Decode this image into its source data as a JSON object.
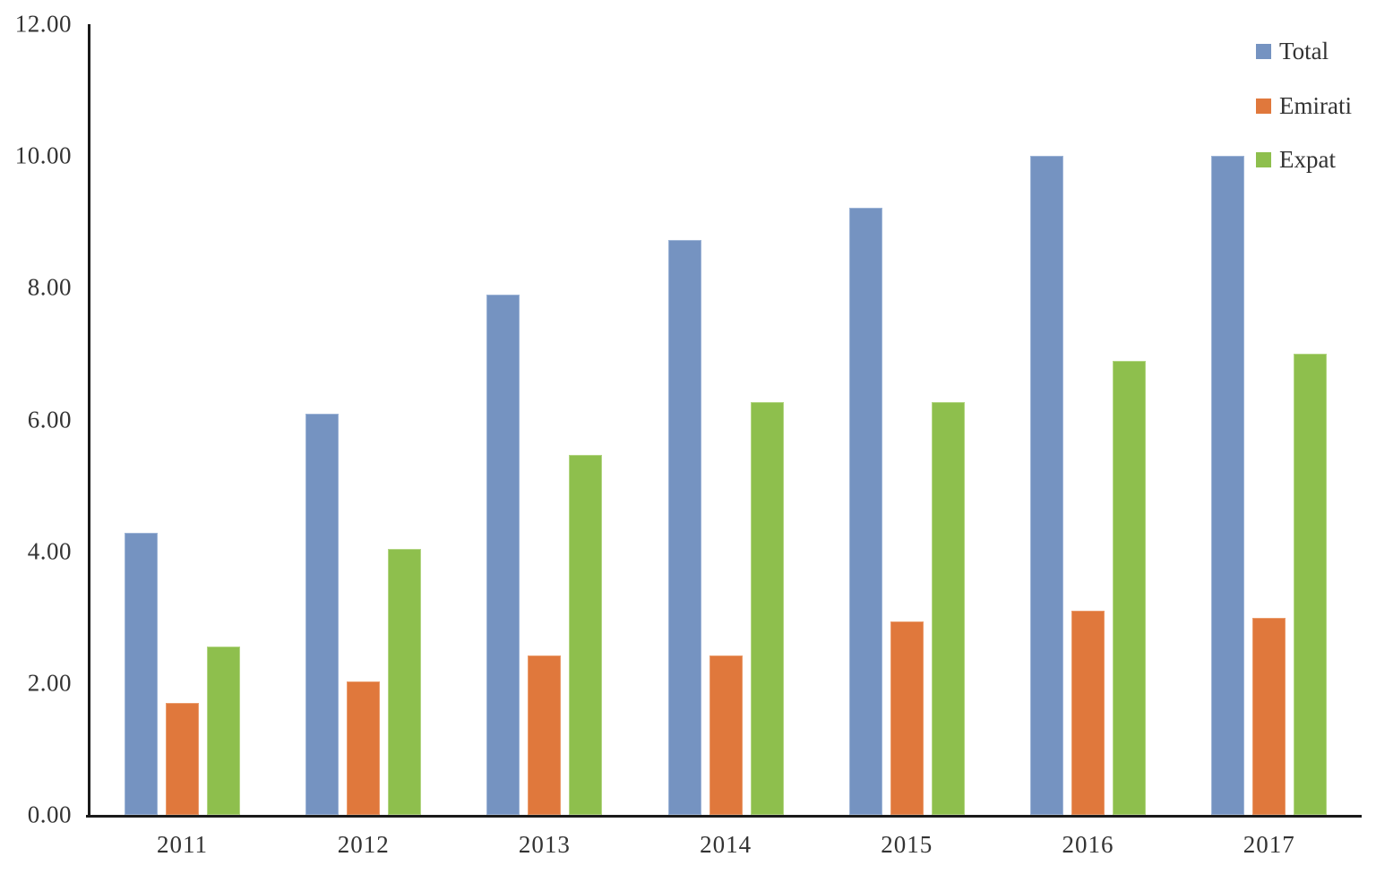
{
  "chart_data": {
    "type": "bar",
    "title": "",
    "xlabel": "",
    "ylabel": "",
    "categories": [
      "2011",
      "2012",
      "2013",
      "2014",
      "2015",
      "2016",
      "2017"
    ],
    "series": [
      {
        "name": "Total",
        "color": "#7593C1",
        "edge_color": "#9DB4D6",
        "values": [
          4.28,
          6.09,
          7.9,
          8.72,
          9.21,
          10.0,
          10.0
        ]
      },
      {
        "name": "Emirati",
        "color": "#E0783C",
        "edge_color": "#EA9B6B",
        "values": [
          1.7,
          2.03,
          2.42,
          2.42,
          2.93,
          3.1,
          2.99
        ]
      },
      {
        "name": "Expat",
        "color": "#8EBF4D",
        "edge_color": "#B2D582",
        "values": [
          2.56,
          4.03,
          5.46,
          6.26,
          6.26,
          6.89,
          7.0
        ]
      }
    ],
    "ylim": [
      0,
      12
    ],
    "ytick_step": 2,
    "ytick_labels": [
      "0.00",
      "2.00",
      "4.00",
      "6.00",
      "8.00",
      "10.00",
      "12.00"
    ],
    "grid": false,
    "legend_position": "top-right",
    "axis_color": "#1a1a1a",
    "text_color": "#333333",
    "background_color": "#ffffff"
  }
}
